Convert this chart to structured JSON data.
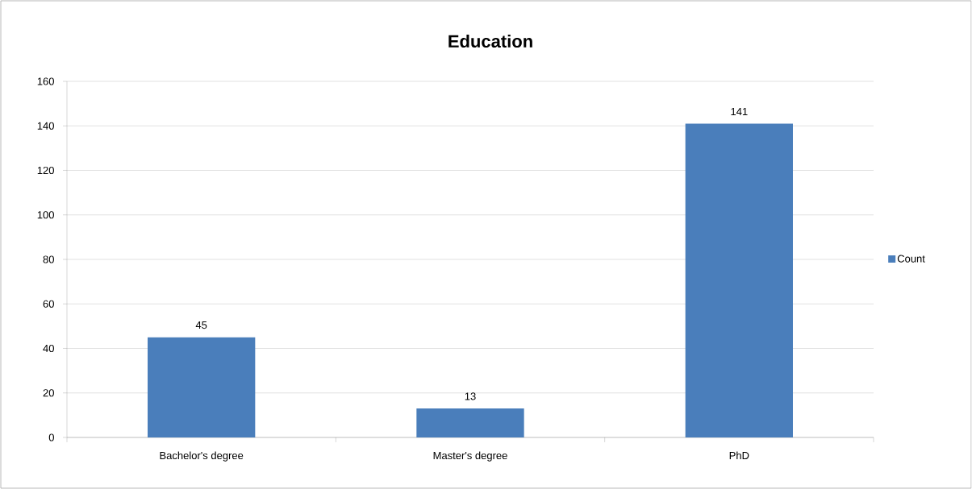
{
  "chart_data": {
    "type": "bar",
    "title": "Education",
    "categories": [
      "Bachelor's degree",
      "Master's degree",
      "PhD"
    ],
    "series": [
      {
        "name": "Count",
        "color": "#4a7ebb",
        "values": [
          45,
          13,
          141
        ]
      }
    ],
    "ylim": [
      0,
      160
    ],
    "yticks": [
      0,
      20,
      40,
      60,
      80,
      100,
      120,
      140,
      160
    ],
    "grid": "y",
    "legend": "right",
    "data_labels": true
  }
}
